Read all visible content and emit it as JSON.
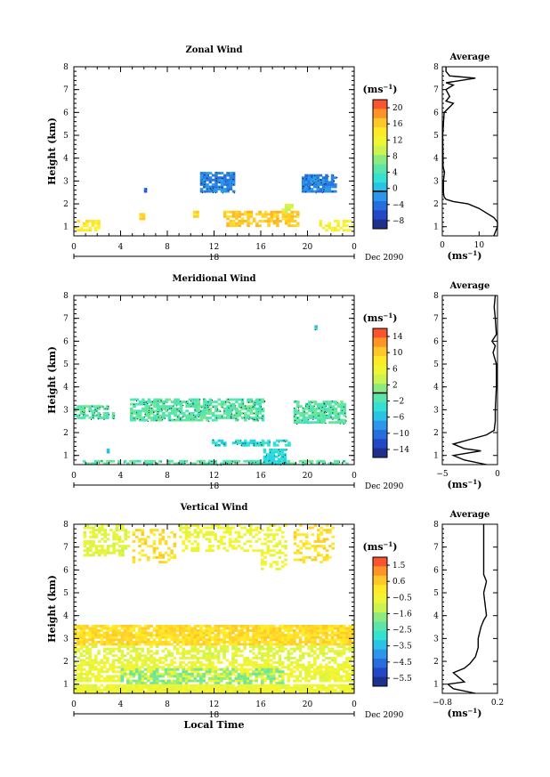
{
  "figure": {
    "date_label": "Dec 2090",
    "day_label": "18",
    "xlabel": "Local Time",
    "avg_title": "Average",
    "unit": "(ms",
    "unit_sup": "−1",
    "unit_close": ")"
  },
  "chart_data": [
    {
      "type": "heatmap",
      "title": "Zonal Wind",
      "ylabel": "Height (km)",
      "x_ticks": [
        "0",
        "4",
        "8",
        "12",
        "16",
        "20",
        "0"
      ],
      "x_range": [
        0,
        24
      ],
      "y_ticks": [
        "1",
        "2",
        "3",
        "4",
        "5",
        "6",
        "7",
        "8"
      ],
      "y_range": [
        0.6,
        8
      ],
      "colorbar": {
        "ticks": [
          "20",
          "16",
          "12",
          "8",
          "4",
          "0",
          "−4",
          "−8"
        ],
        "range": [
          -9,
          22
        ],
        "zero_line": 0
      },
      "regions": [
        {
          "x": [
            0.0,
            2.2
          ],
          "y": [
            0.8,
            1.3
          ],
          "value": 14,
          "density": 0.6
        },
        {
          "x": [
            5.6,
            6.0
          ],
          "y": [
            1.3,
            1.6
          ],
          "value": 16,
          "density": 1.0
        },
        {
          "x": [
            10.2,
            10.6
          ],
          "y": [
            1.4,
            1.7
          ],
          "value": 15,
          "density": 1.0
        },
        {
          "x": [
            10.8,
            13.8
          ],
          "y": [
            2.5,
            3.4
          ],
          "value": -2,
          "density": 0.85
        },
        {
          "x": [
            12.8,
            19.2
          ],
          "y": [
            1.0,
            1.7
          ],
          "value": 16,
          "density": 0.65
        },
        {
          "x": [
            17.8,
            18.8
          ],
          "y": [
            1.6,
            2.0
          ],
          "value": 11,
          "density": 0.7
        },
        {
          "x": [
            19.5,
            22.4
          ],
          "y": [
            2.5,
            3.3
          ],
          "value": -2,
          "density": 0.85
        },
        {
          "x": [
            21.0,
            24.0
          ],
          "y": [
            0.8,
            1.3
          ],
          "value": 13,
          "density": 0.5
        },
        {
          "x": [
            6.0,
            6.2
          ],
          "y": [
            2.5,
            2.7
          ],
          "value": -4,
          "density": 1.0
        }
      ],
      "profile": {
        "x_ticks": [
          "0",
          "10"
        ],
        "x_range": [
          0,
          15
        ],
        "height": [
          0.6,
          1.0,
          1.2,
          1.4,
          1.6,
          1.8,
          2.0,
          2.1,
          2.2,
          2.3,
          2.5,
          3.0,
          3.4,
          3.6,
          4.0,
          5.0,
          6.0,
          6.4,
          6.5,
          6.7,
          7.0,
          7.2,
          7.3,
          7.5,
          7.6,
          7.8,
          8.0
        ],
        "value": [
          14,
          15,
          15,
          14,
          12,
          10,
          7,
          3,
          1,
          0.5,
          0.3,
          0.3,
          0.6,
          0.2,
          0.2,
          0.1,
          0.5,
          3,
          1,
          2,
          1,
          3,
          1,
          9,
          2,
          1,
          1
        ]
      }
    },
    {
      "type": "heatmap",
      "title": "Meridional Wind",
      "ylabel": "Height (km)",
      "x_ticks": [
        "0",
        "4",
        "8",
        "12",
        "16",
        "20",
        "0"
      ],
      "x_range": [
        0,
        24
      ],
      "y_ticks": [
        "1",
        "2",
        "3",
        "4",
        "5",
        "6",
        "7",
        "8"
      ],
      "y_range": [
        0.6,
        8
      ],
      "colorbar": {
        "ticks": [
          "14",
          "10",
          "6",
          "2",
          "−2",
          "−6",
          "−10",
          "−14"
        ],
        "range": [
          -16,
          16
        ],
        "zero_line": 0
      },
      "regions": [
        {
          "x": [
            0.0,
            3.5
          ],
          "y": [
            2.6,
            3.2
          ],
          "value": -1,
          "density": 0.7
        },
        {
          "x": [
            4.8,
            16.2
          ],
          "y": [
            2.5,
            3.5
          ],
          "value": -1,
          "density": 0.75
        },
        {
          "x": [
            18.8,
            23.2
          ],
          "y": [
            2.4,
            3.4
          ],
          "value": -1,
          "density": 0.75
        },
        {
          "x": [
            0.5,
            24.0
          ],
          "y": [
            0.6,
            0.8
          ],
          "value": -1,
          "density": 0.6
        },
        {
          "x": [
            11.8,
            18.5
          ],
          "y": [
            1.4,
            1.7
          ],
          "value": -4,
          "density": 0.6
        },
        {
          "x": [
            16.2,
            18.2
          ],
          "y": [
            0.6,
            1.3
          ],
          "value": -4,
          "density": 0.8
        },
        {
          "x": [
            2.8,
            3.0
          ],
          "y": [
            1.1,
            1.3
          ],
          "value": -6,
          "density": 1.0
        },
        {
          "x": [
            20.6,
            20.8
          ],
          "y": [
            6.5,
            6.7
          ],
          "value": -5,
          "density": 1.0
        }
      ],
      "profile": {
        "x_ticks": [
          "−5",
          "0"
        ],
        "x_range": [
          -5,
          0
        ],
        "height": [
          0.6,
          0.8,
          1.0,
          1.2,
          1.3,
          1.5,
          1.7,
          1.9,
          2.1,
          2.5,
          3.0,
          4.0,
          5.0,
          5.5,
          5.8,
          6.0,
          6.3,
          7.0,
          7.5,
          8.0
        ],
        "value": [
          -1,
          -3,
          -4,
          -1.5,
          -3,
          -4,
          -2.5,
          -1,
          -0.3,
          -0.2,
          -0.2,
          -0.1,
          -0.1,
          -0.4,
          -0.2,
          -0.5,
          -0.1,
          -0.2,
          -0.3,
          -0.2
        ]
      }
    },
    {
      "type": "heatmap",
      "title": "Vertical Wind",
      "ylabel": "Height (km)",
      "xlabel": "Local Time",
      "x_ticks": [
        "0",
        "4",
        "8",
        "12",
        "16",
        "20",
        "0"
      ],
      "x_range": [
        0,
        24
      ],
      "y_ticks": [
        "1",
        "2",
        "3",
        "4",
        "5",
        "6",
        "7",
        "8"
      ],
      "y_range": [
        0.6,
        8
      ],
      "colorbar": {
        "ticks": [
          "1.5",
          "0.6",
          "−0.5",
          "−1.6",
          "−2.5",
          "−3.5",
          "−4.5",
          "−5.5"
        ],
        "range": [
          -6,
          2
        ],
        "zero_line": null
      },
      "regions": [
        {
          "x": [
            0.0,
            24.0
          ],
          "y": [
            2.7,
            3.6
          ],
          "value": 0.2,
          "density": 0.9
        },
        {
          "x": [
            0.0,
            24.0
          ],
          "y": [
            2.0,
            2.7
          ],
          "value": -0.8,
          "density": 0.55
        },
        {
          "x": [
            0.0,
            24.0
          ],
          "y": [
            1.1,
            2.0
          ],
          "value": -0.6,
          "density": 0.7
        },
        {
          "x": [
            4.0,
            18.0
          ],
          "y": [
            1.0,
            1.7
          ],
          "value": -1.8,
          "density": 0.5
        },
        {
          "x": [
            0.0,
            24.0
          ],
          "y": [
            0.6,
            1.0
          ],
          "value": -0.6,
          "density": 0.95
        },
        {
          "x": [
            0.8,
            4.8
          ],
          "y": [
            6.6,
            8.0
          ],
          "value": -0.8,
          "density": 0.5
        },
        {
          "x": [
            5.0,
            8.6
          ],
          "y": [
            6.3,
            7.8
          ],
          "value": 0.2,
          "density": 0.35
        },
        {
          "x": [
            9.0,
            16.0
          ],
          "y": [
            6.8,
            8.0
          ],
          "value": -0.6,
          "density": 0.4
        },
        {
          "x": [
            16.0,
            18.2
          ],
          "y": [
            6.0,
            8.0
          ],
          "value": -0.6,
          "density": 0.35
        },
        {
          "x": [
            18.8,
            22.2
          ],
          "y": [
            6.3,
            8.0
          ],
          "value": 0.2,
          "density": 0.35
        }
      ],
      "profile": {
        "x_ticks": [
          "−0.8",
          "0.2"
        ],
        "x_range": [
          -0.8,
          0.2
        ],
        "height": [
          0.6,
          0.8,
          1.0,
          1.1,
          1.3,
          1.5,
          1.7,
          1.9,
          2.2,
          2.6,
          3.0,
          3.5,
          3.8,
          4.0,
          5.0,
          5.5,
          5.8,
          6.0,
          6.5,
          7.0,
          7.5,
          8.0
        ],
        "value": [
          -0.2,
          -0.6,
          -0.7,
          -0.4,
          -0.5,
          -0.6,
          -0.4,
          -0.3,
          -0.2,
          -0.15,
          -0.15,
          -0.1,
          -0.05,
          0.0,
          -0.05,
          0.0,
          -0.05,
          -0.05,
          -0.05,
          -0.05,
          -0.05,
          -0.05
        ]
      }
    }
  ]
}
